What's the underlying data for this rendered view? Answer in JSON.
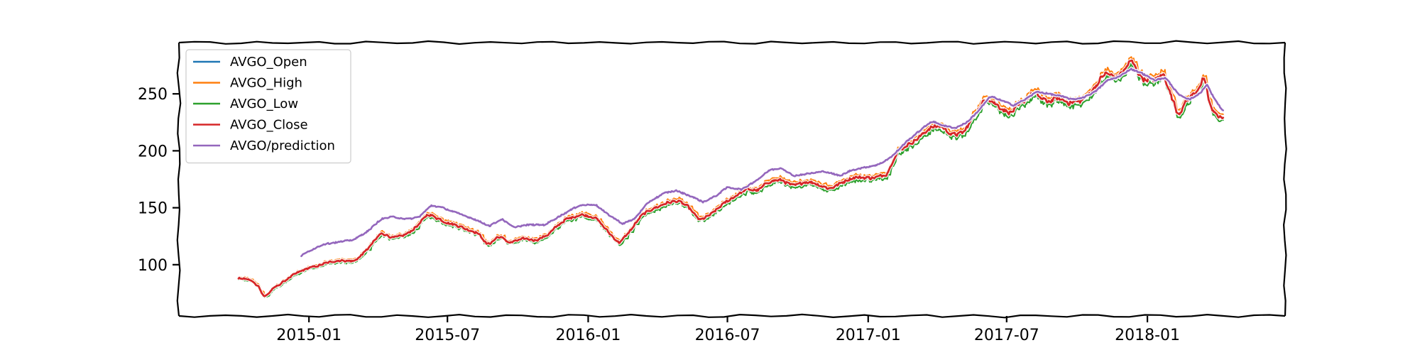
{
  "chart_data": {
    "type": "line",
    "title": "",
    "xlabel": "",
    "ylabel": "",
    "x_start": "2014-10-01",
    "x_end": "2018-04-10",
    "xlim": [
      "2014-07-15",
      "2018-06-30"
    ],
    "ylim": [
      55,
      295
    ],
    "x_ticks": [
      {
        "date": "2015-01-01",
        "label": "2015-01"
      },
      {
        "date": "2015-07-01",
        "label": "2015-07"
      },
      {
        "date": "2016-01-01",
        "label": "2016-01"
      },
      {
        "date": "2016-07-01",
        "label": "2016-07"
      },
      {
        "date": "2017-01-01",
        "label": "2017-01"
      },
      {
        "date": "2017-07-01",
        "label": "2017-07"
      },
      {
        "date": "2018-01-01",
        "label": "2018-01"
      }
    ],
    "y_ticks": [
      {
        "value": 100,
        "label": "100"
      },
      {
        "value": 150,
        "label": "150"
      },
      {
        "value": 200,
        "label": "200"
      },
      {
        "value": 250,
        "label": "250"
      }
    ],
    "grid": false,
    "legend": "upper left",
    "series": [
      {
        "name": "AVGO_Open",
        "color": "#1f77b4"
      },
      {
        "name": "AVGO_High",
        "color": "#ff7f0e"
      },
      {
        "name": "AVGO_Low",
        "color": "#2ca02c"
      },
      {
        "name": "AVGO_Close",
        "color": "#d62728"
      },
      {
        "name": "AVGO/prediction",
        "color": "#9467bd"
      }
    ],
    "close_anchors": [
      [
        "2014-10-01",
        88
      ],
      [
        "2014-10-15",
        86
      ],
      [
        "2014-10-28",
        80
      ],
      [
        "2014-11-02",
        71
      ],
      [
        "2014-11-15",
        80
      ],
      [
        "2014-12-01",
        86
      ],
      [
        "2014-12-15",
        92
      ],
      [
        "2015-01-01",
        98
      ],
      [
        "2015-01-20",
        101
      ],
      [
        "2015-02-10",
        103
      ],
      [
        "2015-03-01",
        104
      ],
      [
        "2015-03-20",
        115
      ],
      [
        "2015-04-05",
        127
      ],
      [
        "2015-04-20",
        124
      ],
      [
        "2015-05-10",
        128
      ],
      [
        "2015-05-25",
        135
      ],
      [
        "2015-06-05",
        144
      ],
      [
        "2015-06-20",
        141
      ],
      [
        "2015-07-10",
        135
      ],
      [
        "2015-07-25",
        130
      ],
      [
        "2015-08-10",
        128
      ],
      [
        "2015-08-22",
        118
      ],
      [
        "2015-09-05",
        125
      ],
      [
        "2015-09-20",
        118
      ],
      [
        "2015-10-10",
        124
      ],
      [
        "2015-10-25",
        122
      ],
      [
        "2015-11-10",
        126
      ],
      [
        "2015-12-01",
        140
      ],
      [
        "2015-12-20",
        145
      ],
      [
        "2016-01-10",
        140
      ],
      [
        "2016-01-25",
        130
      ],
      [
        "2016-02-10",
        120
      ],
      [
        "2016-02-25",
        130
      ],
      [
        "2016-03-10",
        142
      ],
      [
        "2016-03-25",
        150
      ],
      [
        "2016-04-10",
        155
      ],
      [
        "2016-04-25",
        155
      ],
      [
        "2016-05-10",
        150
      ],
      [
        "2016-05-25",
        140
      ],
      [
        "2016-06-10",
        145
      ],
      [
        "2016-06-25",
        152
      ],
      [
        "2016-07-10",
        160
      ],
      [
        "2016-07-25",
        168
      ],
      [
        "2016-08-10",
        165
      ],
      [
        "2016-08-25",
        172
      ],
      [
        "2016-09-10",
        175
      ],
      [
        "2016-09-25",
        170
      ],
      [
        "2016-10-10",
        172
      ],
      [
        "2016-10-25",
        170
      ],
      [
        "2016-11-10",
        168
      ],
      [
        "2016-11-25",
        172
      ],
      [
        "2016-12-10",
        175
      ],
      [
        "2016-12-25",
        176
      ],
      [
        "2017-01-10",
        178
      ],
      [
        "2017-01-25",
        180
      ],
      [
        "2017-02-05",
        195
      ],
      [
        "2017-02-20",
        205
      ],
      [
        "2017-03-05",
        212
      ],
      [
        "2017-03-20",
        220
      ],
      [
        "2017-04-05",
        220
      ],
      [
        "2017-04-20",
        214
      ],
      [
        "2017-05-05",
        218
      ],
      [
        "2017-05-20",
        232
      ],
      [
        "2017-06-05",
        245
      ],
      [
        "2017-06-20",
        240
      ],
      [
        "2017-07-05",
        235
      ],
      [
        "2017-07-20",
        240
      ],
      [
        "2017-08-05",
        250
      ],
      [
        "2017-08-20",
        245
      ],
      [
        "2017-09-05",
        247
      ],
      [
        "2017-09-20",
        240
      ],
      [
        "2017-10-05",
        243
      ],
      [
        "2017-10-20",
        255
      ],
      [
        "2017-11-05",
        268
      ],
      [
        "2017-11-20",
        262
      ],
      [
        "2017-12-01",
        270
      ],
      [
        "2017-12-10",
        282
      ],
      [
        "2017-12-25",
        264
      ],
      [
        "2018-01-10",
        260
      ],
      [
        "2018-01-22",
        266
      ],
      [
        "2018-02-01",
        248
      ],
      [
        "2018-02-10",
        233
      ],
      [
        "2018-02-20",
        245
      ],
      [
        "2018-03-05",
        250
      ],
      [
        "2018-03-15",
        262
      ],
      [
        "2018-03-25",
        235
      ],
      [
        "2018-04-05",
        232
      ],
      [
        "2018-04-10",
        230
      ]
    ],
    "prediction_anchors": [
      [
        "2014-12-20",
        107
      ],
      [
        "2015-01-01",
        112
      ],
      [
        "2015-01-20",
        118
      ],
      [
        "2015-02-10",
        120
      ],
      [
        "2015-03-01",
        122
      ],
      [
        "2015-03-20",
        130
      ],
      [
        "2015-04-05",
        140
      ],
      [
        "2015-04-20",
        142
      ],
      [
        "2015-05-10",
        140
      ],
      [
        "2015-05-25",
        142
      ],
      [
        "2015-06-10",
        152
      ],
      [
        "2015-06-25",
        150
      ],
      [
        "2015-07-15",
        145
      ],
      [
        "2015-08-05",
        140
      ],
      [
        "2015-08-25",
        134
      ],
      [
        "2015-09-10",
        140
      ],
      [
        "2015-09-25",
        133
      ],
      [
        "2015-10-15",
        135
      ],
      [
        "2015-11-05",
        135
      ],
      [
        "2015-12-01",
        145
      ],
      [
        "2015-12-20",
        152
      ],
      [
        "2016-01-10",
        153
      ],
      [
        "2016-01-25",
        145
      ],
      [
        "2016-02-15",
        136
      ],
      [
        "2016-03-01",
        140
      ],
      [
        "2016-03-20",
        155
      ],
      [
        "2016-04-10",
        163
      ],
      [
        "2016-04-25",
        165
      ],
      [
        "2016-05-15",
        160
      ],
      [
        "2016-05-30",
        155
      ],
      [
        "2016-06-15",
        160
      ],
      [
        "2016-07-01",
        168
      ],
      [
        "2016-07-20",
        166
      ],
      [
        "2016-08-10",
        175
      ],
      [
        "2016-08-25",
        183
      ],
      [
        "2016-09-10",
        185
      ],
      [
        "2016-09-25",
        178
      ],
      [
        "2016-10-15",
        180
      ],
      [
        "2016-11-05",
        182
      ],
      [
        "2016-11-25",
        178
      ],
      [
        "2016-12-10",
        183
      ],
      [
        "2016-12-25",
        185
      ],
      [
        "2017-01-15",
        188
      ],
      [
        "2017-02-01",
        195
      ],
      [
        "2017-02-20",
        208
      ],
      [
        "2017-03-10",
        218
      ],
      [
        "2017-03-25",
        226
      ],
      [
        "2017-04-10",
        222
      ],
      [
        "2017-04-25",
        220
      ],
      [
        "2017-05-10",
        225
      ],
      [
        "2017-05-25",
        235
      ],
      [
        "2017-06-10",
        248
      ],
      [
        "2017-06-25",
        244
      ],
      [
        "2017-07-10",
        240
      ],
      [
        "2017-07-25",
        245
      ],
      [
        "2017-08-10",
        252
      ],
      [
        "2017-08-25",
        250
      ],
      [
        "2017-09-10",
        248
      ],
      [
        "2017-09-25",
        245
      ],
      [
        "2017-10-10",
        247
      ],
      [
        "2017-10-25",
        252
      ],
      [
        "2017-11-10",
        262
      ],
      [
        "2017-11-25",
        265
      ],
      [
        "2017-12-10",
        272
      ],
      [
        "2017-12-25",
        268
      ],
      [
        "2018-01-10",
        262
      ],
      [
        "2018-01-25",
        264
      ],
      [
        "2018-02-10",
        250
      ],
      [
        "2018-02-25",
        245
      ],
      [
        "2018-03-10",
        250
      ],
      [
        "2018-03-20",
        258
      ],
      [
        "2018-03-30",
        245
      ],
      [
        "2018-04-10",
        235
      ]
    ]
  }
}
